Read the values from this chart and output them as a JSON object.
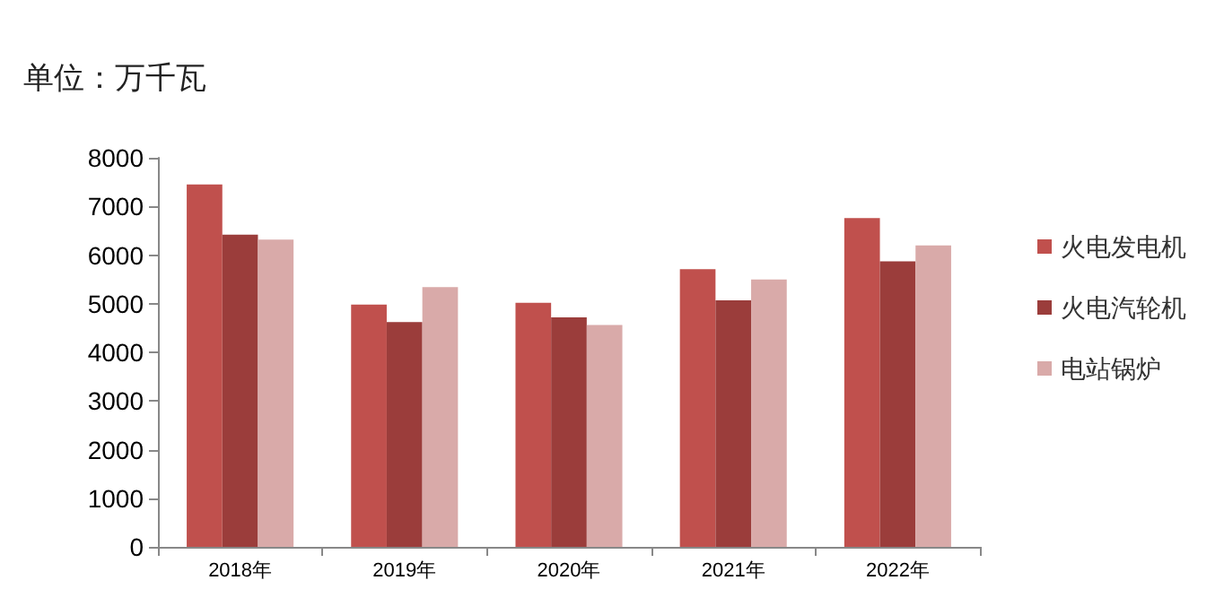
{
  "chart_data": {
    "type": "bar",
    "ylabel": "单位：万千瓦",
    "categories": [
      "2018年",
      "2019年",
      "2020年",
      "2021年",
      "2022年"
    ],
    "series": [
      {
        "name": "火电发电机",
        "color": "#c0504d",
        "values": [
          7450,
          4980,
          5020,
          5710,
          6760
        ]
      },
      {
        "name": "火电汽轮机",
        "color": "#9b3d3b",
        "values": [
          6420,
          4620,
          4720,
          5070,
          5870
        ]
      },
      {
        "name": "电站锅炉",
        "color": "#d9aaa9",
        "values": [
          6320,
          5340,
          4560,
          5500,
          6200
        ]
      }
    ],
    "ylim": [
      0,
      8000
    ],
    "yticks": [
      0,
      1000,
      2000,
      3000,
      4000,
      5000,
      6000,
      7000,
      8000
    ],
    "grid": false,
    "legend": "right"
  }
}
